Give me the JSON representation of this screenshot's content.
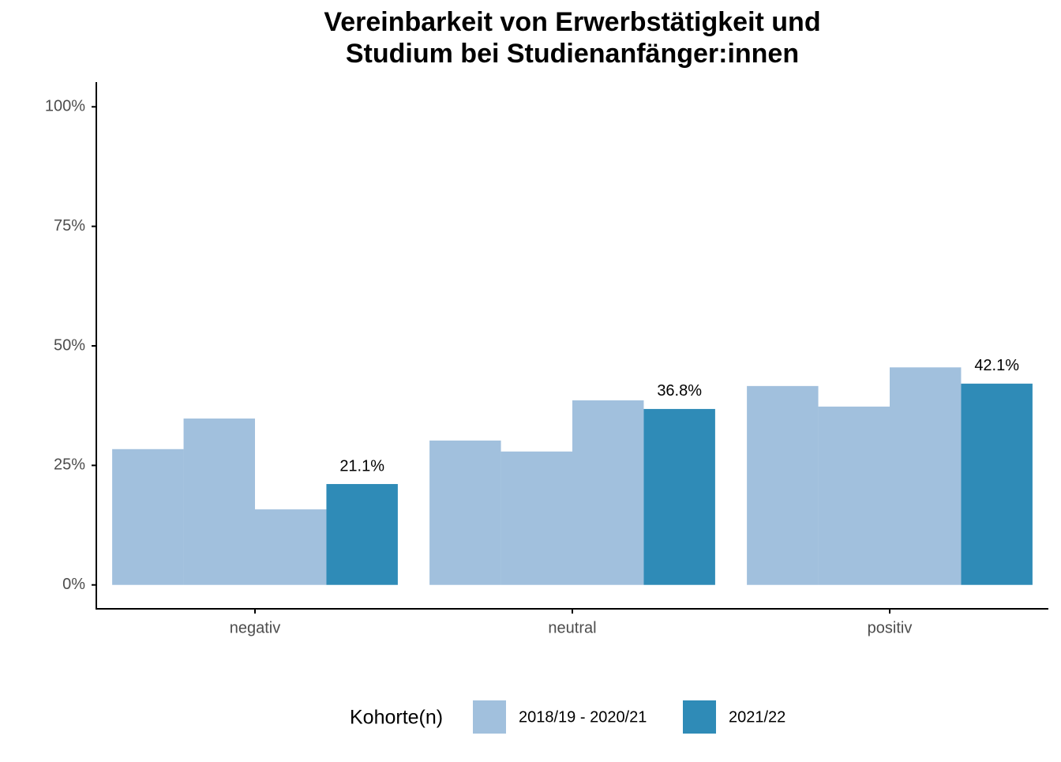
{
  "chart_data": {
    "type": "bar",
    "title": "Vereinbarkeit von Erwerbstätigkeit und",
    "subtitle": "Studium bei Studienanfänger:innen",
    "categories": [
      "negativ",
      "neutral",
      "positiv"
    ],
    "series": [
      {
        "color": "#a1c0dd",
        "values": [
          28.4,
          30.2,
          41.6
        ]
      },
      {
        "color": "#a1c0dd",
        "values": [
          34.8,
          27.9,
          37.3
        ]
      },
      {
        "color": "#a1c0dd",
        "values": [
          15.8,
          38.6,
          45.5
        ]
      },
      {
        "name": "2021/22",
        "color": "#2f8bb7",
        "values": [
          21.1,
          36.8,
          42.1
        ],
        "value_labels": [
          "21.1%",
          "36.8%",
          "42.1%"
        ]
      }
    ],
    "legend": {
      "title": "Kohorte(n)",
      "entries": [
        {
          "name": "2018/19 - 2020/21",
          "color": "#a1c0dd"
        },
        {
          "name": "2021/22",
          "color": "#2f8bb7"
        }
      ]
    },
    "ylim": [
      -5,
      105
    ],
    "yticks": [
      {
        "value": 0,
        "label": "0%"
      },
      {
        "value": 25,
        "label": "25%"
      },
      {
        "value": 50,
        "label": "50%"
      },
      {
        "value": 75,
        "label": "75%"
      },
      {
        "value": 100,
        "label": "100%"
      }
    ],
    "grid": false
  }
}
